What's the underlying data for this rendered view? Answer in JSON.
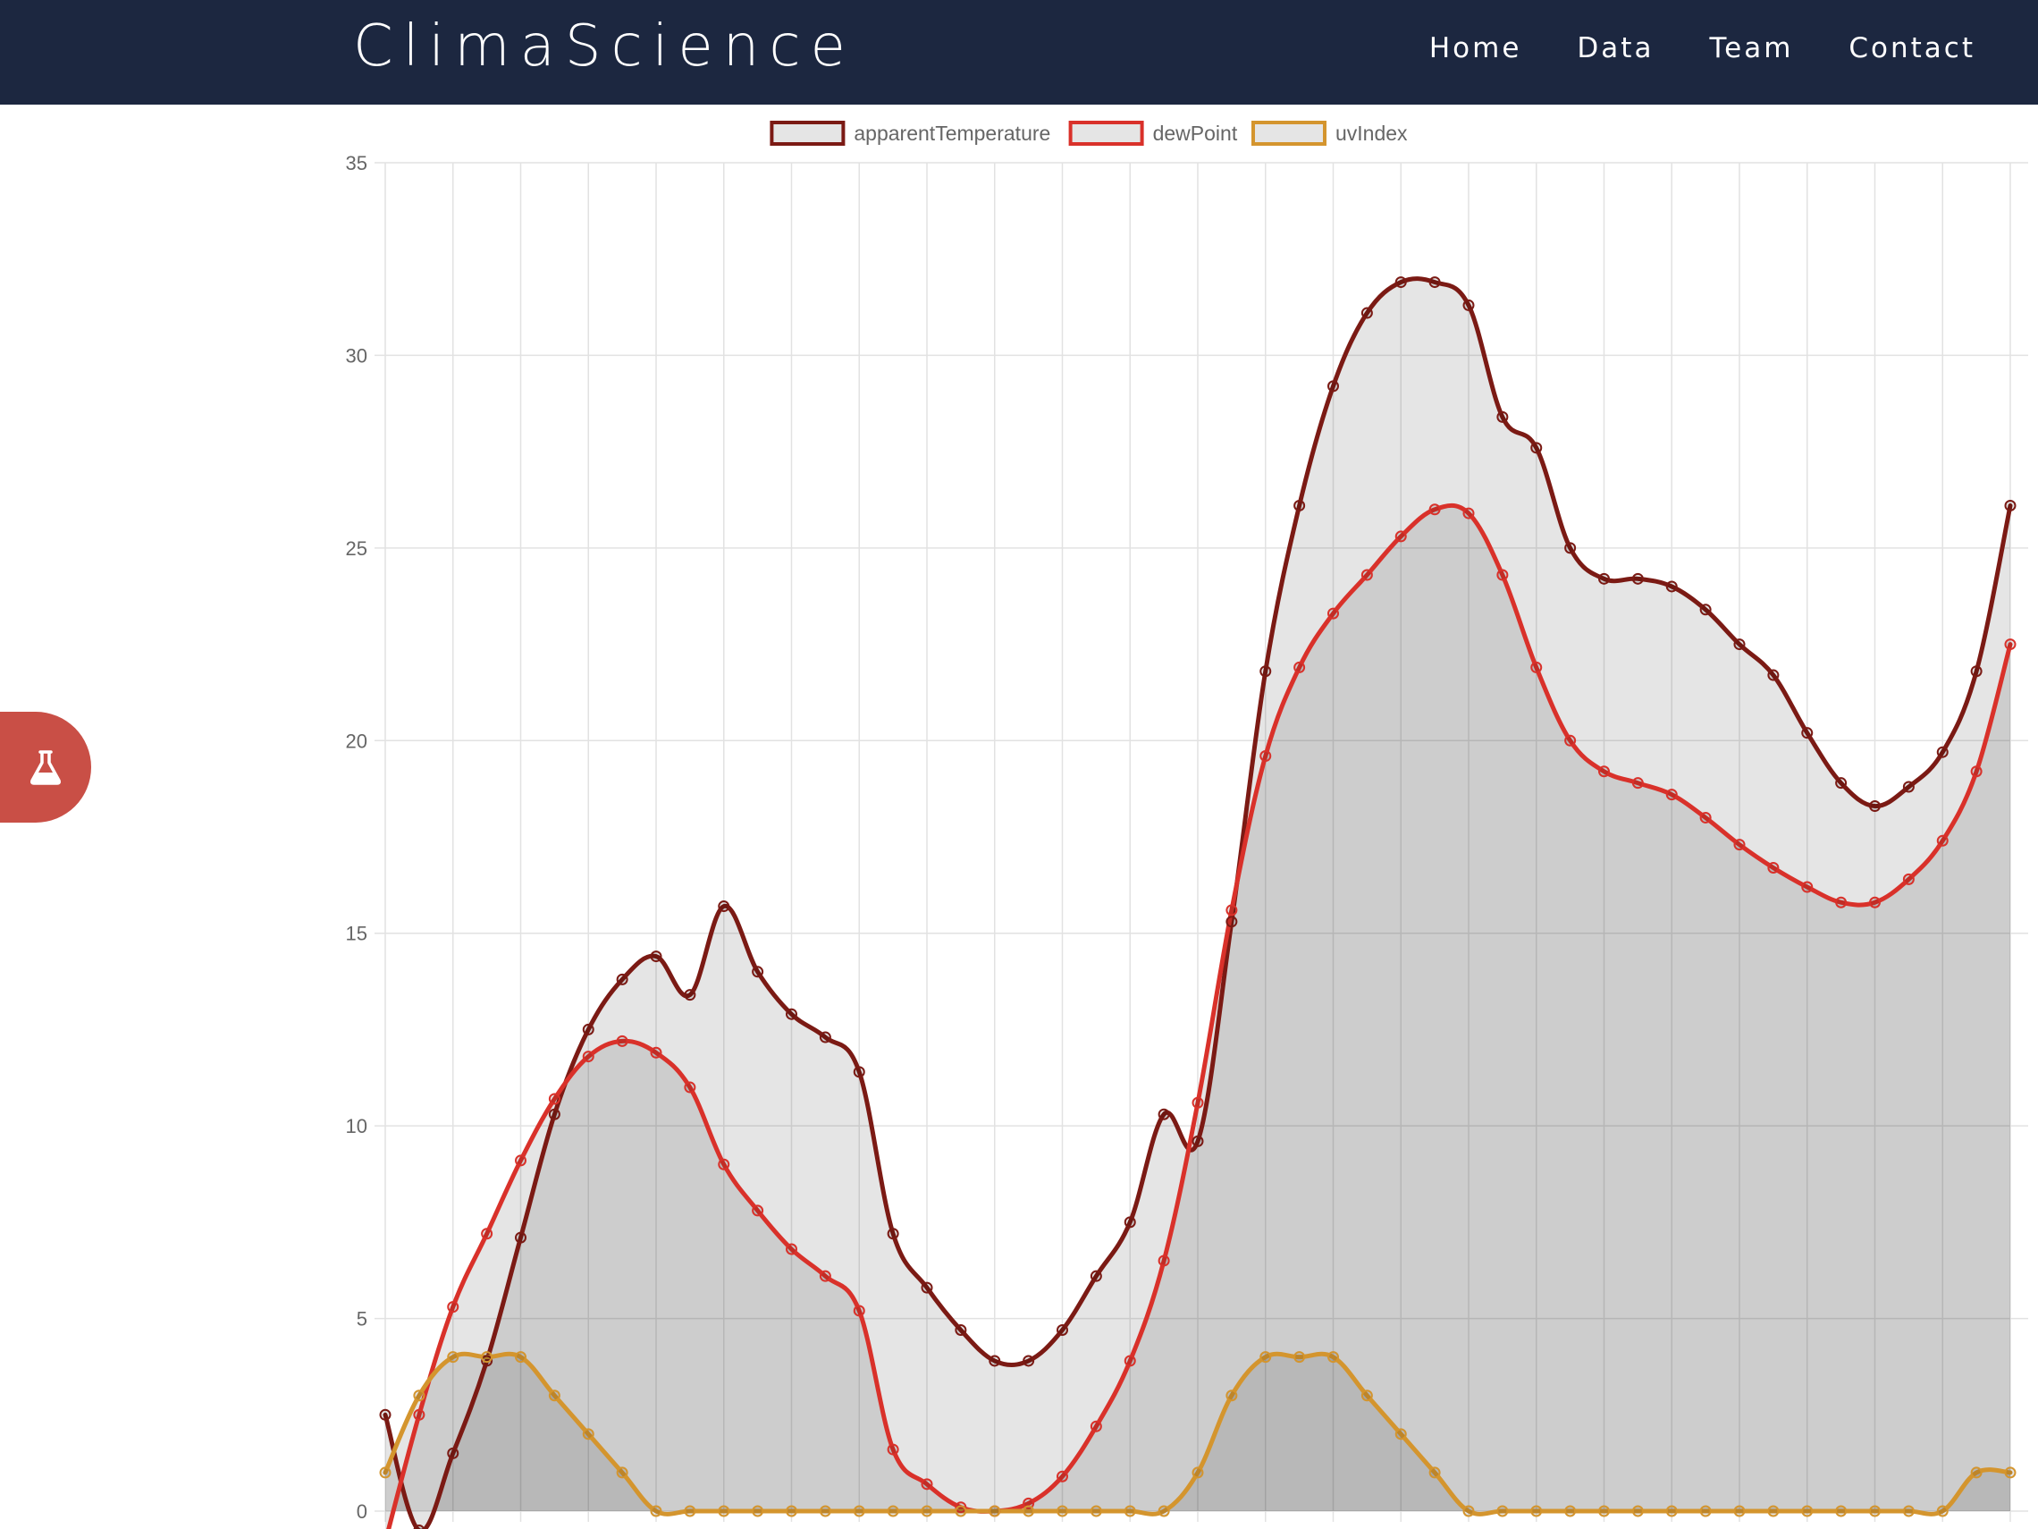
{
  "header": {
    "brand": "ClimaScience",
    "nav": [
      "Home",
      "Data",
      "Team",
      "Contact"
    ]
  },
  "side_tab": {
    "icon": "flask-icon"
  },
  "colors": {
    "navbar": "#1c2740",
    "side_tab": "#c94f46",
    "apparentTemperature": "#7b1a14",
    "dewPoint": "#d9312a",
    "uvIndex": "#d4952e"
  },
  "chart_data": {
    "type": "line",
    "fill": "area",
    "legend_position": "top",
    "grid": true,
    "ylim": [
      0,
      35
    ],
    "yticks": [
      0,
      5,
      10,
      15,
      20,
      25,
      30,
      35
    ],
    "series": [
      {
        "name": "apparentTemperature",
        "color": "#7b1a14",
        "values": [
          2.5,
          -0.5,
          1.5,
          3.9,
          7.1,
          10.3,
          12.5,
          13.8,
          14.4,
          13.4,
          15.7,
          14.0,
          12.9,
          12.3,
          11.4,
          7.2,
          5.8,
          4.7,
          3.9,
          3.9,
          4.7,
          6.1,
          7.5,
          10.3,
          9.6,
          15.3,
          21.8,
          26.1,
          29.2,
          31.1,
          31.9,
          31.9,
          31.3,
          28.4,
          27.6,
          25.0,
          24.2,
          24.2,
          24.0,
          23.4,
          22.5,
          21.7,
          20.2,
          18.9,
          18.3,
          18.8,
          19.7,
          21.8,
          26.1
        ]
      },
      {
        "name": "dewPoint",
        "color": "#d9312a",
        "values": [
          -0.8,
          2.5,
          5.3,
          7.2,
          9.1,
          10.7,
          11.8,
          12.2,
          11.9,
          11.0,
          9.0,
          7.8,
          6.8,
          6.1,
          5.2,
          1.6,
          0.7,
          0.1,
          0.0,
          0.2,
          0.9,
          2.2,
          3.9,
          6.5,
          10.6,
          15.6,
          19.6,
          21.9,
          23.3,
          24.3,
          25.3,
          26.0,
          25.9,
          24.3,
          21.9,
          20.0,
          19.2,
          18.9,
          18.6,
          18.0,
          17.3,
          16.7,
          16.2,
          15.8,
          15.8,
          16.4,
          17.4,
          19.2,
          22.5
        ]
      },
      {
        "name": "uvIndex",
        "color": "#d4952e",
        "values": [
          1,
          3,
          4,
          4,
          4,
          3,
          2,
          1,
          0,
          0,
          0,
          0,
          0,
          0,
          0,
          0,
          0,
          0,
          0,
          0,
          0,
          0,
          0,
          0,
          1,
          3,
          4,
          4,
          4,
          3,
          2,
          1,
          0,
          0,
          0,
          0,
          0,
          0,
          0,
          0,
          0,
          0,
          0,
          0,
          0,
          0,
          0,
          1,
          1
        ]
      }
    ]
  }
}
